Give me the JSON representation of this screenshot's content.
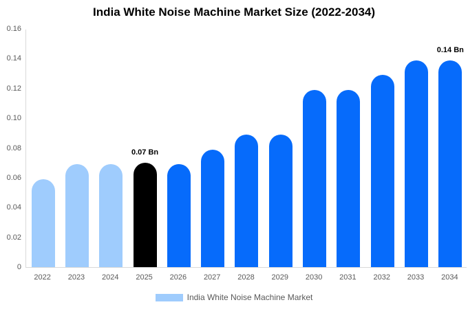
{
  "chart_data": {
    "type": "bar",
    "title": "India White Noise Machine Market Size (2022-2034)",
    "categories": [
      "2022",
      "2023",
      "2024",
      "2025",
      "2026",
      "2027",
      "2028",
      "2029",
      "2030",
      "2031",
      "2032",
      "2033",
      "2034"
    ],
    "values": [
      0.059,
      0.069,
      0.069,
      0.07,
      0.069,
      0.079,
      0.089,
      0.089,
      0.119,
      0.119,
      0.129,
      0.139,
      0.139
    ],
    "unit": "Bn",
    "xlabel": "",
    "ylabel": "",
    "ylim": [
      0,
      0.16
    ],
    "y_tick_labels": [
      "0",
      "0.02",
      "0.04",
      "0.06",
      "0.08",
      "0.10",
      "0.12",
      "0.14",
      "0.16"
    ],
    "y_tick_values": [
      0,
      0.02,
      0.04,
      0.06,
      0.08,
      0.1,
      0.12,
      0.14,
      0.16
    ],
    "grid": false,
    "legend_position": "bottom",
    "legend_label": "India White Noise Machine Market",
    "bar_colors": [
      "#9fccfd",
      "#9fccfd",
      "#9fccfd",
      "#000000",
      "#066bfb",
      "#066bfb",
      "#066bfb",
      "#066bfb",
      "#066bfb",
      "#066bfb",
      "#066bfb",
      "#066bfb",
      "#066bfb"
    ],
    "annotations": [
      {
        "index": 3,
        "text": "0.07 Bn"
      },
      {
        "index": 12,
        "text": "0.14 Bn"
      }
    ],
    "colors": {
      "series_light_blue": "#9fccfd",
      "series_primary_blue": "#066bfb",
      "series_highlight_black": "#000000",
      "axis_line": "#d9d9d9",
      "tick_text": "#595959",
      "title_text": "#000000",
      "background": "#ffffff"
    }
  }
}
